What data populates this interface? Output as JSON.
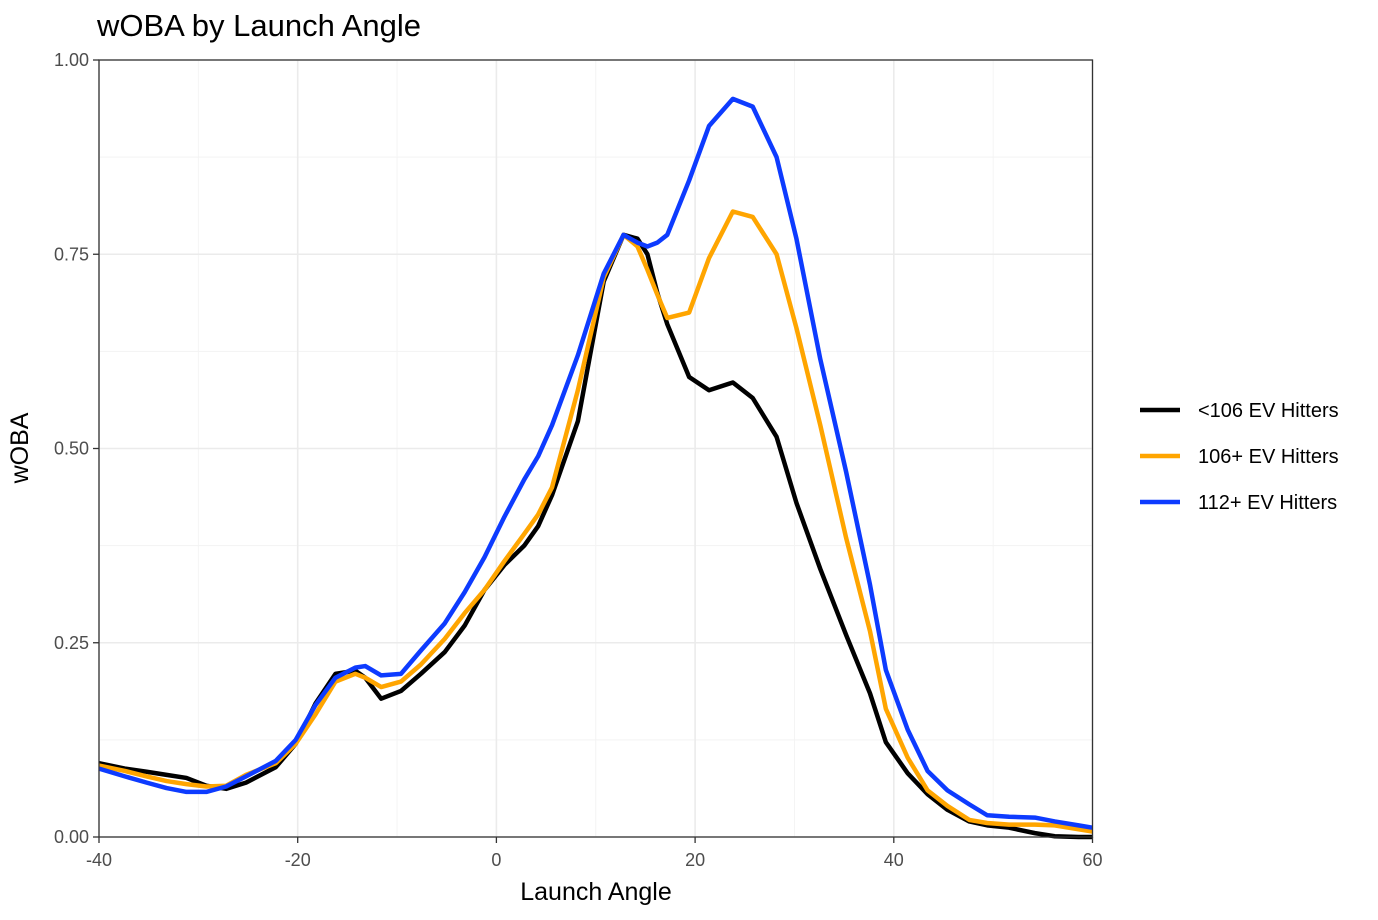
{
  "chart_data": {
    "type": "line",
    "title": "wOBA by Launch Angle",
    "xlabel": "Launch Angle",
    "ylabel": "wOBA",
    "xlim": [
      -40,
      60
    ],
    "ylim": [
      0,
      1
    ],
    "x_ticks": [
      -40,
      -20,
      0,
      20,
      40,
      60
    ],
    "x_tick_labels": [
      "-40",
      "-20",
      "0",
      "20",
      "40",
      "60"
    ],
    "y_ticks": [
      0,
      0.25,
      0.5,
      0.75,
      1
    ],
    "y_tick_labels": [
      "0.00",
      "0.25",
      "0.50",
      "0.75",
      "1.00"
    ],
    "grid": true,
    "legend_position": "right",
    "series": [
      {
        "name": "<106 EV Hitters",
        "color": "#000000",
        "x": [
          -40,
          -37.4,
          -35.2,
          -33.2,
          -31.2,
          -29.2,
          -27.2,
          -25.2,
          -22.2,
          -20.2,
          -18.2,
          -16.2,
          -14.2,
          -13.2,
          -11.6,
          -9.6,
          -7.6,
          -5.2,
          -3.2,
          -1.2,
          0.8,
          2.8,
          4.2,
          5.6,
          8.2,
          10.8,
          12.8,
          14.2,
          15.2,
          16.2,
          17.2,
          19.4,
          21.4,
          23.8,
          25.8,
          28.2,
          30.2,
          32.6,
          35.2,
          37.6,
          39.2,
          41.4,
          43.4,
          45.4,
          47.6,
          49.4,
          51.6,
          54.2,
          56.2,
          58.6,
          60
        ],
        "y": [
          0.095,
          0.088,
          0.084,
          0.08,
          0.076,
          0.066,
          0.062,
          0.07,
          0.09,
          0.12,
          0.172,
          0.21,
          0.214,
          0.205,
          0.178,
          0.188,
          0.21,
          0.238,
          0.272,
          0.318,
          0.35,
          0.375,
          0.4,
          0.44,
          0.535,
          0.715,
          0.775,
          0.77,
          0.75,
          0.7,
          0.66,
          0.592,
          0.575,
          0.585,
          0.565,
          0.515,
          0.43,
          0.345,
          0.26,
          0.185,
          0.122,
          0.082,
          0.055,
          0.035,
          0.02,
          0.015,
          0.012,
          0.005,
          0.001,
          0,
          0
        ]
      },
      {
        "name": "106+ EV Hitters",
        "color": "#FFA500",
        "x": [
          -40,
          -37.4,
          -35.2,
          -33.2,
          -31.2,
          -29.2,
          -27.2,
          -25.2,
          -22.2,
          -20.2,
          -18.2,
          -16.2,
          -14.2,
          -13.2,
          -11.6,
          -9.6,
          -7.6,
          -5.2,
          -3.2,
          -1.2,
          0.8,
          2.8,
          4.2,
          5.6,
          8.2,
          10.8,
          12.8,
          14.2,
          15.2,
          16.2,
          17.2,
          19.4,
          21.4,
          23.8,
          25.8,
          28.2,
          30.2,
          32.6,
          35.2,
          37.6,
          39.2,
          41.4,
          43.4,
          45.4,
          47.6,
          49.4,
          51.6,
          54.2,
          56.2,
          58.6,
          60
        ],
        "y": [
          0.092,
          0.085,
          0.078,
          0.072,
          0.068,
          0.065,
          0.066,
          0.08,
          0.095,
          0.12,
          0.158,
          0.2,
          0.21,
          0.205,
          0.193,
          0.2,
          0.222,
          0.255,
          0.288,
          0.318,
          0.355,
          0.39,
          0.415,
          0.45,
          0.575,
          0.72,
          0.775,
          0.76,
          0.73,
          0.698,
          0.668,
          0.675,
          0.745,
          0.805,
          0.798,
          0.75,
          0.655,
          0.53,
          0.385,
          0.265,
          0.165,
          0.102,
          0.06,
          0.04,
          0.022,
          0.018,
          0.016,
          0.016,
          0.015,
          0.01,
          0.007
        ]
      },
      {
        "name": "112+ EV Hitters",
        "color": "#0D3BFF",
        "x": [
          -40,
          -37.4,
          -35.2,
          -33.2,
          -31.2,
          -29.2,
          -27.2,
          -25.2,
          -22.2,
          -20.2,
          -18.2,
          -16.2,
          -14.2,
          -13.2,
          -11.6,
          -9.6,
          -7.6,
          -5.2,
          -3.2,
          -1.2,
          0.8,
          2.8,
          4.2,
          5.6,
          8.2,
          10.8,
          12.8,
          14.2,
          15.2,
          16.2,
          17.2,
          19.4,
          21.4,
          23.8,
          25.8,
          28.2,
          30.2,
          32.6,
          35.2,
          37.6,
          39.2,
          41.4,
          43.4,
          45.4,
          47.6,
          49.4,
          51.6,
          54.2,
          56.2,
          58.6,
          60
        ],
        "y": [
          0.088,
          0.078,
          0.07,
          0.063,
          0.058,
          0.058,
          0.065,
          0.078,
          0.098,
          0.125,
          0.17,
          0.205,
          0.218,
          0.22,
          0.208,
          0.21,
          0.24,
          0.275,
          0.315,
          0.36,
          0.412,
          0.46,
          0.49,
          0.53,
          0.62,
          0.725,
          0.775,
          0.765,
          0.76,
          0.765,
          0.775,
          0.845,
          0.915,
          0.95,
          0.94,
          0.875,
          0.77,
          0.615,
          0.47,
          0.325,
          0.215,
          0.138,
          0.085,
          0.06,
          0.042,
          0.028,
          0.026,
          0.025,
          0.02,
          0.015,
          0.012
        ]
      }
    ]
  }
}
